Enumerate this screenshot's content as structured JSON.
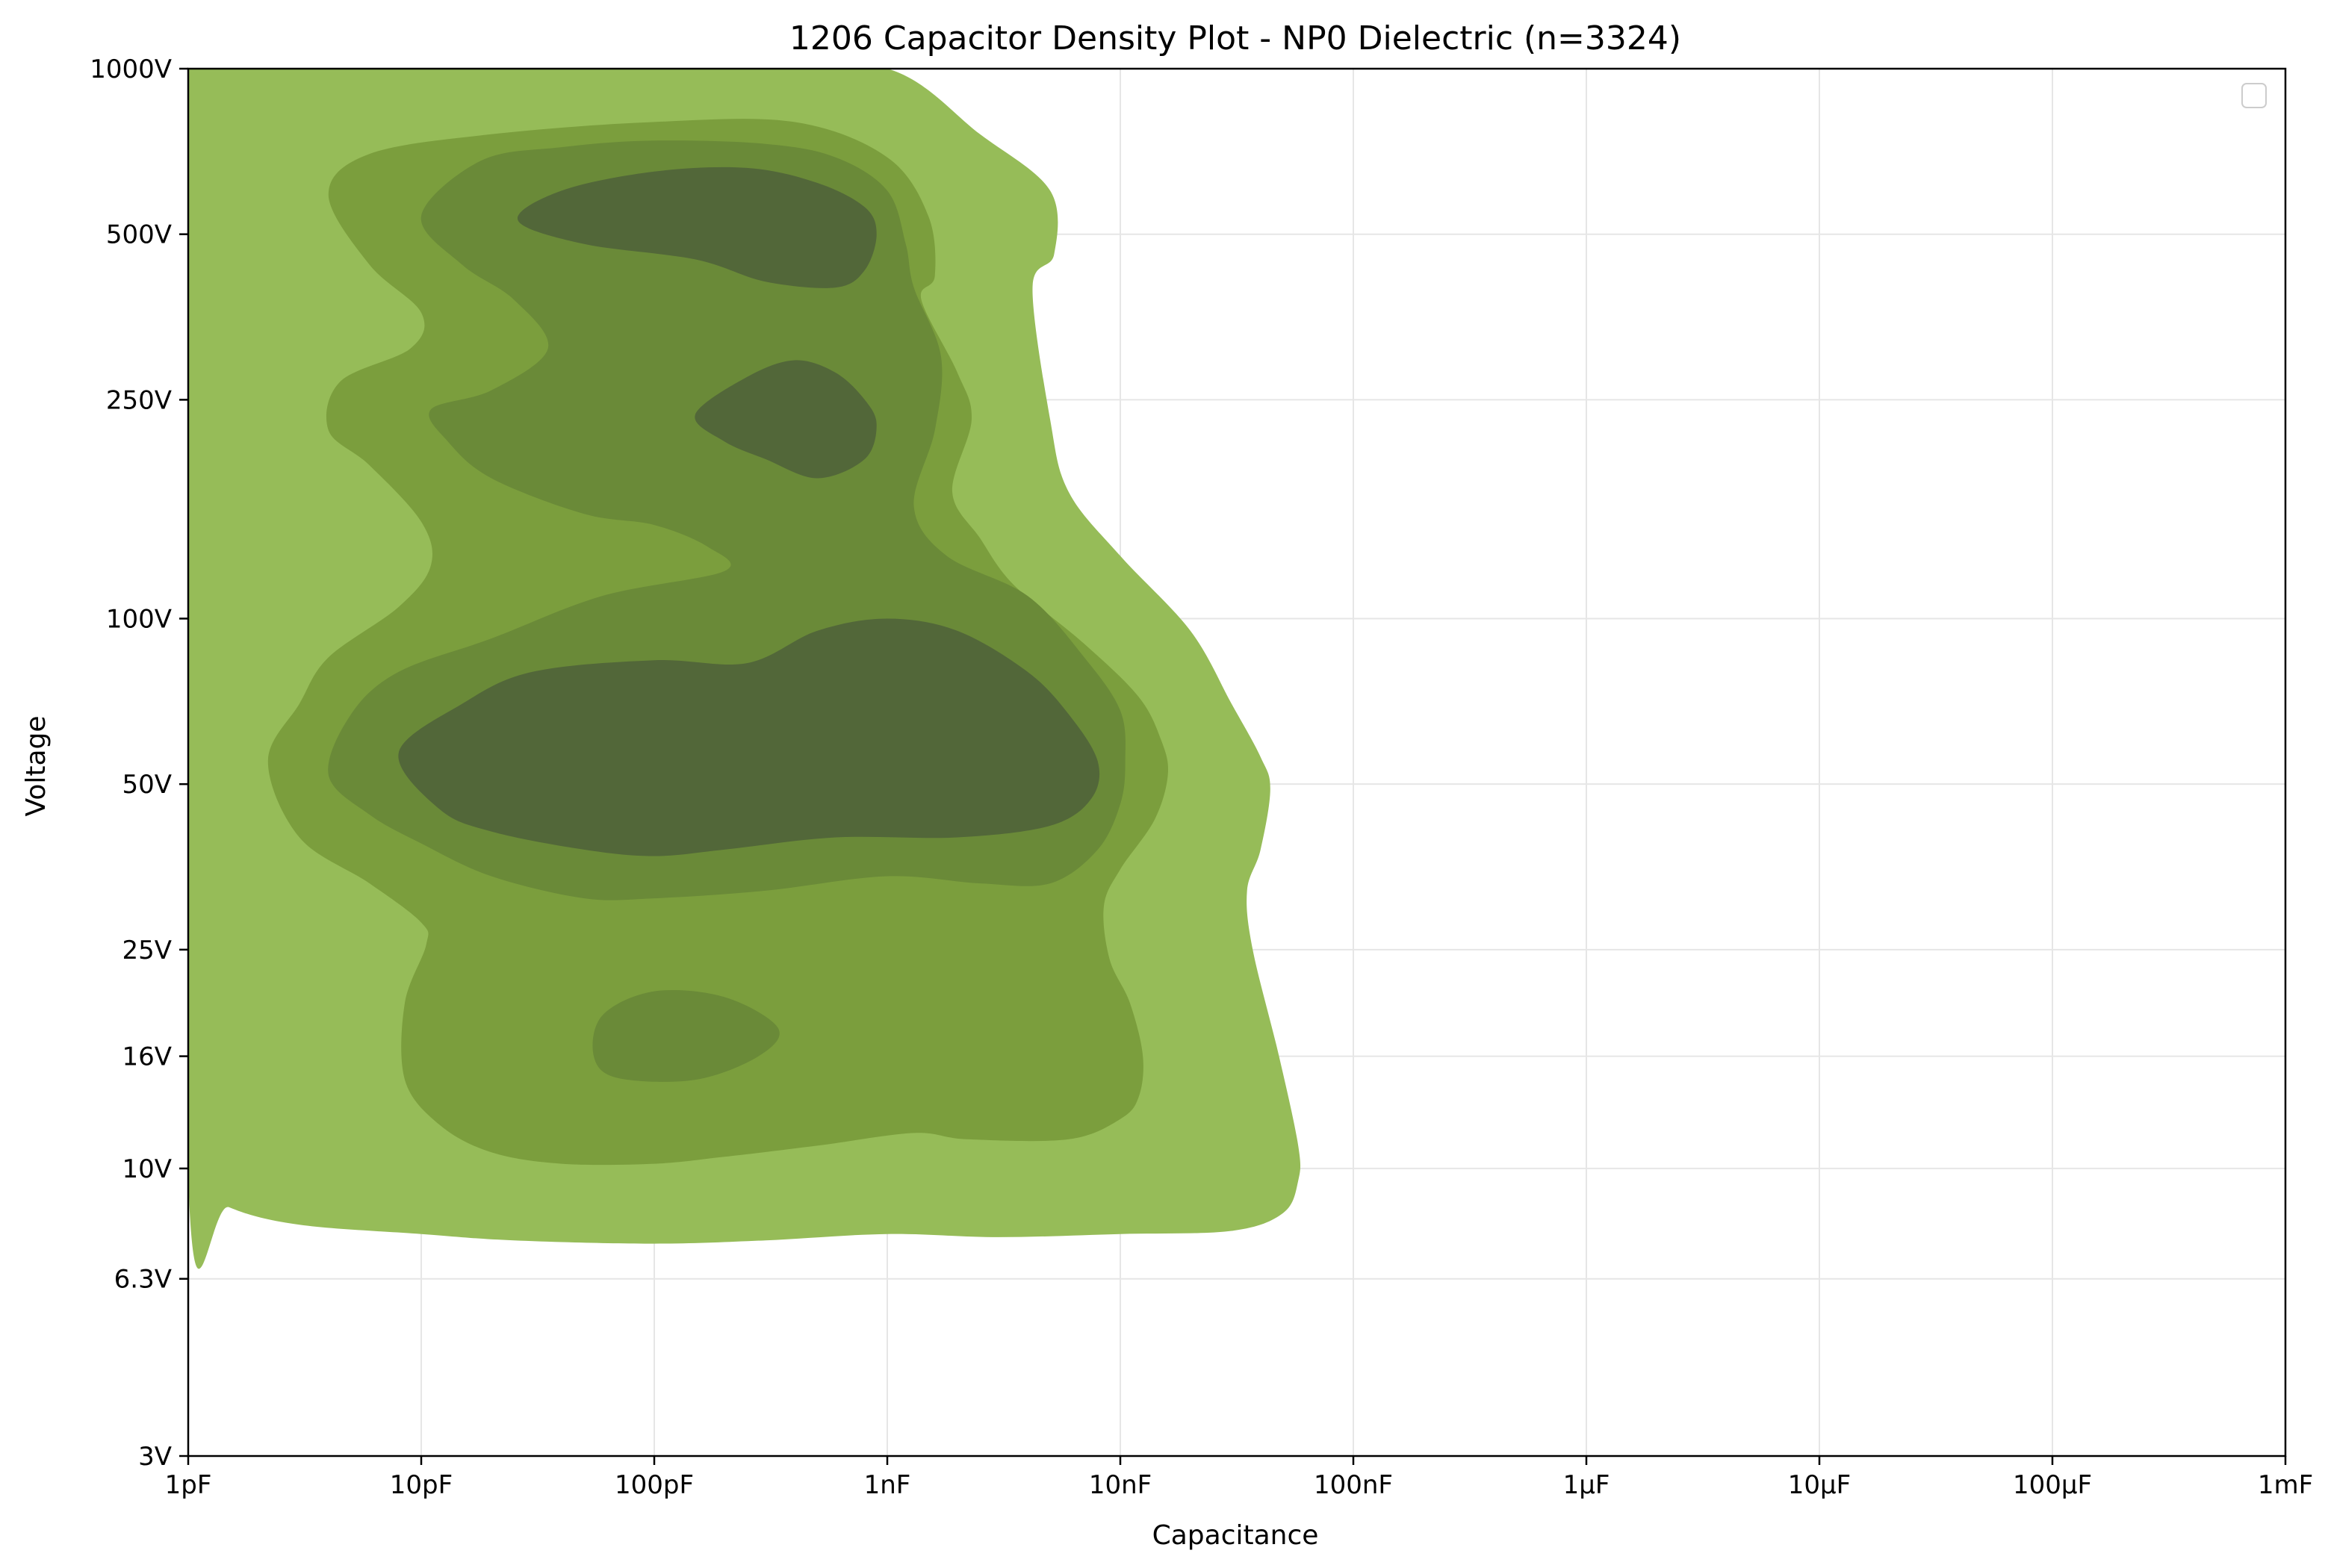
{
  "chart_data": {
    "type": "contour",
    "title": "1206 Capacitor Density Plot - NP0 Dielectric (n=3324)",
    "xlabel": "Capacitance",
    "ylabel": "Voltage",
    "x_scale": "log",
    "y_scale": "log",
    "xlim_farads": [
      1e-12,
      0.001
    ],
    "ylim_volts": [
      3,
      1000
    ],
    "x_ticks": [
      {
        "value": 1e-12,
        "label": "1pF"
      },
      {
        "value": 1e-11,
        "label": "10pF"
      },
      {
        "value": 1e-10,
        "label": "100pF"
      },
      {
        "value": 1e-09,
        "label": "1nF"
      },
      {
        "value": 1e-08,
        "label": "10nF"
      },
      {
        "value": 1e-07,
        "label": "100nF"
      },
      {
        "value": 1e-06,
        "label": "1µF"
      },
      {
        "value": 1e-05,
        "label": "10µF"
      },
      {
        "value": 0.0001,
        "label": "100µF"
      },
      {
        "value": 0.001,
        "label": "1mF"
      }
    ],
    "y_ticks": [
      {
        "value": 3,
        "label": "3V"
      },
      {
        "value": 6.3,
        "label": "6.3V"
      },
      {
        "value": 10,
        "label": "10V"
      },
      {
        "value": 16,
        "label": "16V"
      },
      {
        "value": 25,
        "label": "25V"
      },
      {
        "value": 50,
        "label": "50V"
      },
      {
        "value": 100,
        "label": "100V"
      },
      {
        "value": 250,
        "label": "250V"
      },
      {
        "value": 500,
        "label": "500V"
      },
      {
        "value": 1000,
        "label": "1000V"
      }
    ],
    "grid": true,
    "legend": {
      "placement": "top-right",
      "entries": []
    },
    "levels": [
      {
        "level": 1,
        "color": "#96bc58",
        "regions": [
          [
            [
              1e-12,
              1000
            ],
            [
              2.5e-10,
              1000
            ],
            [
              1e-09,
              1000
            ],
            [
              2.5e-09,
              760
            ],
            [
              5e-09,
              600
            ],
            [
              5.2e-09,
              460
            ],
            [
              4.2e-09,
              400
            ],
            [
              5e-09,
              230
            ],
            [
              6e-09,
              170
            ],
            [
              1e-08,
              130
            ],
            [
              2e-08,
              95
            ],
            [
              3e-08,
              70
            ],
            [
              4e-08,
              56
            ],
            [
              4.4e-08,
              49
            ],
            [
              4e-08,
              38
            ],
            [
              3.5e-08,
              32
            ],
            [
              3.7e-08,
              25
            ],
            [
              4.8e-08,
              16
            ],
            [
              5.8e-08,
              11
            ],
            [
              5.8e-08,
              9.5
            ],
            [
              5e-08,
              8.3
            ],
            [
              3e-08,
              7.7
            ],
            [
              1e-08,
              7.6
            ],
            [
              3e-09,
              7.5
            ],
            [
              1e-09,
              7.6
            ],
            [
              3e-10,
              7.4
            ],
            [
              1e-10,
              7.3
            ],
            [
              2.5e-11,
              7.4
            ],
            [
              1e-11,
              7.6
            ],
            [
              3e-12,
              7.9
            ],
            [
              1.5e-12,
              8.5
            ],
            [
              1e-12,
              9.6
            ]
          ]
        ]
      },
      {
        "level": 2,
        "color": "#7b9e3d",
        "regions": [
          [
            [
              4e-12,
              590
            ],
            [
              6e-12,
              700
            ],
            [
              2e-11,
              760
            ],
            [
              1e-10,
              800
            ],
            [
              4e-10,
              800
            ],
            [
              1e-09,
              690
            ],
            [
              1.5e-09,
              540
            ],
            [
              1.6e-09,
              420
            ],
            [
              1.4e-09,
              380
            ],
            [
              2e-09,
              280
            ],
            [
              2.3e-09,
              230
            ],
            [
              1.9e-09,
              170
            ],
            [
              2.5e-09,
              140
            ],
            [
              3.5e-09,
              115
            ],
            [
              7e-09,
              90
            ],
            [
              1.2e-08,
              72
            ],
            [
              1.5e-08,
              60
            ],
            [
              1.6e-08,
              52
            ],
            [
              1.4e-08,
              43
            ],
            [
              1e-08,
              35
            ],
            [
              8.5e-09,
              30
            ],
            [
              9e-09,
              24
            ],
            [
              1.1e-08,
              20
            ],
            [
              1.25e-08,
              16
            ],
            [
              1.2e-08,
              13.5
            ],
            [
              1e-08,
              12.3
            ],
            [
              6e-09,
              11.3
            ],
            [
              2.2e-09,
              11.3
            ],
            [
              1.3e-09,
              11.6
            ],
            [
              5e-10,
              11
            ],
            [
              2e-10,
              10.5
            ],
            [
              1e-10,
              10.2
            ],
            [
              4e-11,
              10.2
            ],
            [
              2e-11,
              10.7
            ],
            [
              1.2e-11,
              12
            ],
            [
              8.5e-12,
              14.5
            ],
            [
              8.5e-12,
              20
            ],
            [
              1.05e-11,
              25.5
            ],
            [
              1e-11,
              28
            ],
            [
              6e-12,
              33
            ],
            [
              3e-12,
              40
            ],
            [
              2.2e-12,
              55
            ],
            [
              3e-12,
              70
            ],
            [
              4e-12,
              85
            ],
            [
              8e-12,
              105
            ],
            [
              1.1e-11,
              125
            ],
            [
              1e-11,
              150
            ],
            [
              6e-12,
              190
            ],
            [
              4e-12,
              220
            ],
            [
              4.5e-12,
              270
            ],
            [
              9e-12,
              310
            ],
            [
              1e-11,
              360
            ],
            [
              6e-12,
              440
            ]
          ]
        ]
      },
      {
        "level": 3,
        "color": "#6a8a38",
        "regions": [
          [
            [
              1e-11,
              540
            ],
            [
              1.8e-11,
              680
            ],
            [
              4e-11,
              720
            ],
            [
              1e-10,
              740
            ],
            [
              3e-10,
              730
            ],
            [
              6e-10,
              690
            ],
            [
              1e-09,
              600
            ],
            [
              1.2e-09,
              480
            ],
            [
              1.3e-09,
              400
            ],
            [
              1.7e-09,
              300
            ],
            [
              1.6e-09,
              220
            ],
            [
              1.3e-09,
              160
            ],
            [
              1.8e-09,
              130
            ],
            [
              4e-09,
              110
            ],
            [
              7e-09,
              85
            ],
            [
              1e-08,
              68
            ],
            [
              1.05e-08,
              55
            ],
            [
              1e-08,
              46
            ],
            [
              8e-09,
              38
            ],
            [
              5e-09,
              33
            ],
            [
              2.5e-09,
              33
            ],
            [
              1e-09,
              34
            ],
            [
              3e-10,
              32
            ],
            [
              1e-10,
              31
            ],
            [
              5e-11,
              31
            ],
            [
              2e-11,
              34
            ],
            [
              1e-11,
              39
            ],
            [
              6e-12,
              44
            ],
            [
              4e-12,
              52
            ],
            [
              5e-12,
              67
            ],
            [
              8e-12,
              80
            ],
            [
              2e-11,
              92
            ],
            [
              6e-11,
              110
            ],
            [
              2e-10,
              122
            ],
            [
              1.7e-10,
              135
            ],
            [
              1e-10,
              148
            ],
            [
              5e-11,
              155
            ],
            [
              2e-11,
              180
            ],
            [
              1.3e-11,
              210
            ],
            [
              1.1e-11,
              240
            ],
            [
              2e-11,
              260
            ],
            [
              3.5e-11,
              310
            ],
            [
              2.5e-11,
              380
            ],
            [
              1.5e-11,
              440
            ]
          ],
          [
            [
              5.5e-11,
              16
            ],
            [
              6e-11,
              19
            ],
            [
              1e-10,
              21
            ],
            [
              2e-10,
              20.5
            ],
            [
              3.4e-10,
              18
            ],
            [
              2.8e-10,
              16
            ],
            [
              1.5e-10,
              14.5
            ],
            [
              7e-11,
              14.6
            ]
          ]
        ]
      },
      {
        "level": 4,
        "color": "#526739",
        "regions": [
          [
            [
              2.6e-11,
              530
            ],
            [
              4e-11,
              600
            ],
            [
              1e-10,
              650
            ],
            [
              2.5e-10,
              660
            ],
            [
              5e-10,
              620
            ],
            [
              8e-10,
              560
            ],
            [
              9e-10,
              500
            ],
            [
              8e-10,
              430
            ],
            [
              6e-10,
              400
            ],
            [
              3e-10,
              410
            ],
            [
              1.5e-10,
              450
            ],
            [
              5e-11,
              480
            ]
          ],
          [
            [
              1.5e-10,
              235
            ],
            [
              2.5e-10,
              275
            ],
            [
              4e-10,
              295
            ],
            [
              6e-10,
              280
            ],
            [
              8e-10,
              250
            ],
            [
              9e-10,
              225
            ],
            [
              8e-10,
              195
            ],
            [
              5e-10,
              180
            ],
            [
              3e-10,
              195
            ],
            [
              2e-10,
              210
            ]
          ],
          [
            [
              8e-12,
              57
            ],
            [
              1.5e-11,
              70
            ],
            [
              3e-11,
              80
            ],
            [
              1e-10,
              84
            ],
            [
              2.5e-10,
              83
            ],
            [
              5e-10,
              95
            ],
            [
              1e-09,
              100
            ],
            [
              2e-09,
              95
            ],
            [
              4e-09,
              80
            ],
            [
              6e-09,
              67
            ],
            [
              8e-09,
              55
            ],
            [
              7.5e-09,
              47
            ],
            [
              5e-09,
              42
            ],
            [
              2e-09,
              40
            ],
            [
              6e-10,
              40
            ],
            [
              2e-10,
              38
            ],
            [
              1e-10,
              37
            ],
            [
              5e-11,
              38
            ],
            [
              2e-11,
              41
            ],
            [
              1.2e-11,
              45
            ]
          ]
        ]
      }
    ]
  }
}
